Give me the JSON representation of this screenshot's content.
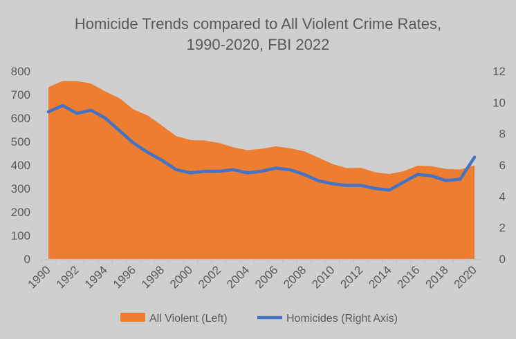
{
  "chart_data": {
    "type": "area+line",
    "title": [
      "Homicide Trends compared to All Violent Crime Rates,",
      "1990-2020, FBI 2022"
    ],
    "x": [
      1990,
      1991,
      1992,
      1993,
      1994,
      1995,
      1996,
      1997,
      1998,
      1999,
      2000,
      2001,
      2002,
      2003,
      2004,
      2005,
      2006,
      2007,
      2008,
      2009,
      2010,
      2011,
      2012,
      2013,
      2014,
      2015,
      2016,
      2017,
      2018,
      2019,
      2020
    ],
    "x_tick_labels": [
      "1990",
      "1992",
      "1994",
      "1996",
      "1998",
      "2000",
      "2002",
      "2004",
      "2006",
      "2008",
      "2010",
      "2012",
      "2014",
      "2016",
      "2018",
      "2020"
    ],
    "left_axis": {
      "ylim": [
        0,
        800
      ],
      "ticks": [
        "0",
        "100",
        "200",
        "300",
        "400",
        "500",
        "600",
        "700",
        "800"
      ]
    },
    "right_axis": {
      "ylim": [
        0,
        12
      ],
      "ticks": [
        "0",
        "2",
        "4",
        "6",
        "8",
        "10",
        "12"
      ]
    },
    "series": [
      {
        "name": "All Violent (Left)",
        "type": "area",
        "axis": "left",
        "color": "#ed7d31",
        "values": [
          731.8,
          758.2,
          757.7,
          747.1,
          713.6,
          684.5,
          636.6,
          611.0,
          567.6,
          523.0,
          506.5,
          504.5,
          494.4,
          475.8,
          463.2,
          469.0,
          479.3,
          471.8,
          458.6,
          431.9,
          404.5,
          387.1,
          387.8,
          369.1,
          361.6,
          373.7,
          397.5,
          394.9,
          383.4,
          380.8,
          398.5
        ]
      },
      {
        "name": "Homicides (Right Axis)",
        "type": "line",
        "axis": "right",
        "color": "#4472c4",
        "values": [
          9.4,
          9.8,
          9.3,
          9.5,
          9.0,
          8.2,
          7.4,
          6.8,
          6.3,
          5.7,
          5.5,
          5.6,
          5.6,
          5.7,
          5.5,
          5.6,
          5.8,
          5.7,
          5.4,
          5.0,
          4.8,
          4.7,
          4.7,
          4.5,
          4.4,
          4.9,
          5.4,
          5.3,
          5.0,
          5.1,
          6.5
        ]
      }
    ],
    "legend": "bottom",
    "grid": false
  }
}
